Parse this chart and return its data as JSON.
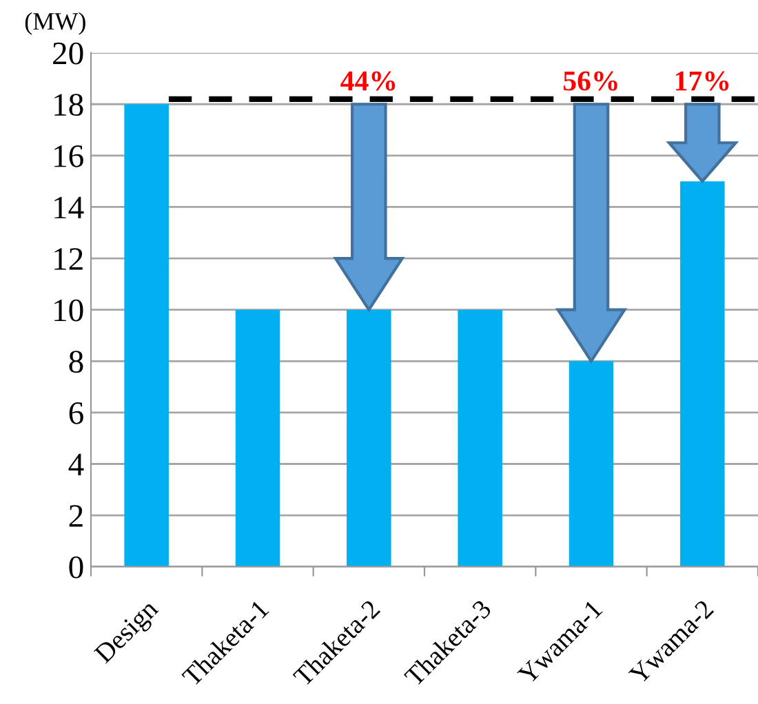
{
  "chart_data": {
    "type": "bar",
    "ylabel": "(MW)",
    "categories": [
      "Design",
      "Thaketa-1",
      "Thaketa-2",
      "Thaketa-3",
      "Ywama-1",
      "Ywama-2"
    ],
    "values": [
      18,
      10,
      10,
      10,
      8,
      15
    ],
    "color": "#00b0f0",
    "ylim": [
      0,
      20
    ],
    "yticks": [
      0,
      2,
      4,
      6,
      8,
      10,
      12,
      14,
      16,
      18,
      20
    ],
    "grid": "y",
    "ref_lines": [
      {
        "axis": "y",
        "value": 18.2,
        "color": "#000000",
        "line_style": "dashed"
      }
    ],
    "annotations": [
      {
        "text": "44%",
        "x": "Thaketa-2",
        "y": 18.2
      },
      {
        "text": "56%",
        "x": "Ywama-1",
        "y": 18.2
      },
      {
        "text": "17%",
        "x": "Ywama-2",
        "y": 18.2
      }
    ]
  }
}
